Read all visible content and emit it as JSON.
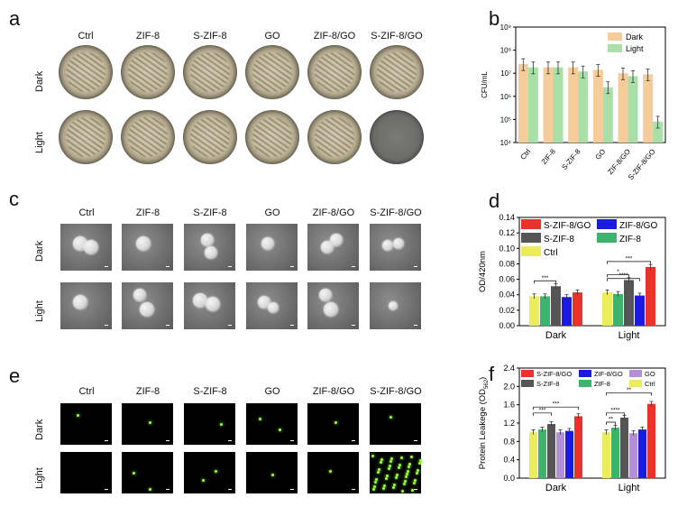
{
  "panel_labels": {
    "a": "a",
    "b": "b",
    "c": "c",
    "d": "d",
    "e": "e",
    "f": "f"
  },
  "groups": [
    "Ctrl",
    "ZIF-8",
    "S-ZIF-8",
    "GO",
    "ZIF-8/GO",
    "S-ZIF-8/GO"
  ],
  "rows": {
    "dark": "Dark",
    "light": "Light"
  },
  "colors": {
    "dark_bar": "#f5cc9a",
    "light_bar": "#a8e0a8",
    "sz8go": "#e8322a",
    "z8go": "#1a1ae0",
    "sz8": "#555555",
    "z8": "#3db36e",
    "ctrl": "#ecec5a",
    "go": "#b48ed8"
  },
  "chart_data": [
    {
      "id": "b",
      "type": "bar",
      "categories": [
        "Ctrl",
        "ZIF-8",
        "S-ZIF-8",
        "GO",
        "ZIF-8/GO",
        "S-ZIF-8/GO"
      ],
      "ylabel": "CFU/mL",
      "yscale": "log",
      "ylim": [
        10000,
        1000000000
      ],
      "yticks": [
        "10⁴",
        "10⁵",
        "10⁶",
        "10⁷",
        "10⁸",
        "10⁹"
      ],
      "series": [
        {
          "name": "Dark",
          "values": [
            25000000,
            18000000,
            18000000,
            14000000,
            10000000,
            9000000
          ]
        },
        {
          "name": "Light",
          "values": [
            18000000,
            18000000,
            12000000,
            2500000,
            7500000,
            80000
          ]
        }
      ],
      "legend": "top-right"
    },
    {
      "id": "d",
      "type": "bar",
      "categories": [
        "Dark",
        "Light"
      ],
      "ylabel": "OD/420nm",
      "ylim": [
        0,
        0.14
      ],
      "yticks": [
        "0.00",
        "0.02",
        "0.04",
        "0.06",
        "0.08",
        "0.10",
        "0.12",
        "0.14"
      ],
      "series": [
        {
          "name": "Ctrl",
          "values": [
            0.038,
            0.043
          ]
        },
        {
          "name": "ZIF-8",
          "values": [
            0.038,
            0.041
          ]
        },
        {
          "name": "S-ZIF-8",
          "values": [
            0.051,
            0.059
          ]
        },
        {
          "name": "ZIF-8/GO",
          "values": [
            0.037,
            0.039
          ]
        },
        {
          "name": "S-ZIF-8/GO",
          "values": [
            0.043,
            0.076
          ]
        }
      ],
      "annotations": [
        "***",
        "***",
        "*",
        "****"
      ],
      "legend": "top"
    },
    {
      "id": "f",
      "type": "bar",
      "categories": [
        "Dark",
        "Light"
      ],
      "ylabel": "Protein Leakege (OD",
      "ylabel_sub": "562",
      "ylabel_end": ")",
      "ylim": [
        0,
        2.4
      ],
      "yticks": [
        "0.0",
        "0.4",
        "0.8",
        "1.2",
        "1.6",
        "2.0",
        "2.4"
      ],
      "series": [
        {
          "name": "Ctrl",
          "values": [
            1.0,
            1.0
          ]
        },
        {
          "name": "ZIF-8",
          "values": [
            1.06,
            1.1
          ]
        },
        {
          "name": "S-ZIF-8",
          "values": [
            1.18,
            1.32
          ]
        },
        {
          "name": "GO",
          "values": [
            1.0,
            0.98
          ]
        },
        {
          "name": "ZIF-8/GO",
          "values": [
            1.03,
            1.06
          ]
        },
        {
          "name": "S-ZIF-8/GO",
          "values": [
            1.35,
            1.62
          ]
        }
      ],
      "annotations": [
        "****",
        "***",
        "***",
        "**",
        "****",
        "**"
      ],
      "legend": "top"
    }
  ]
}
